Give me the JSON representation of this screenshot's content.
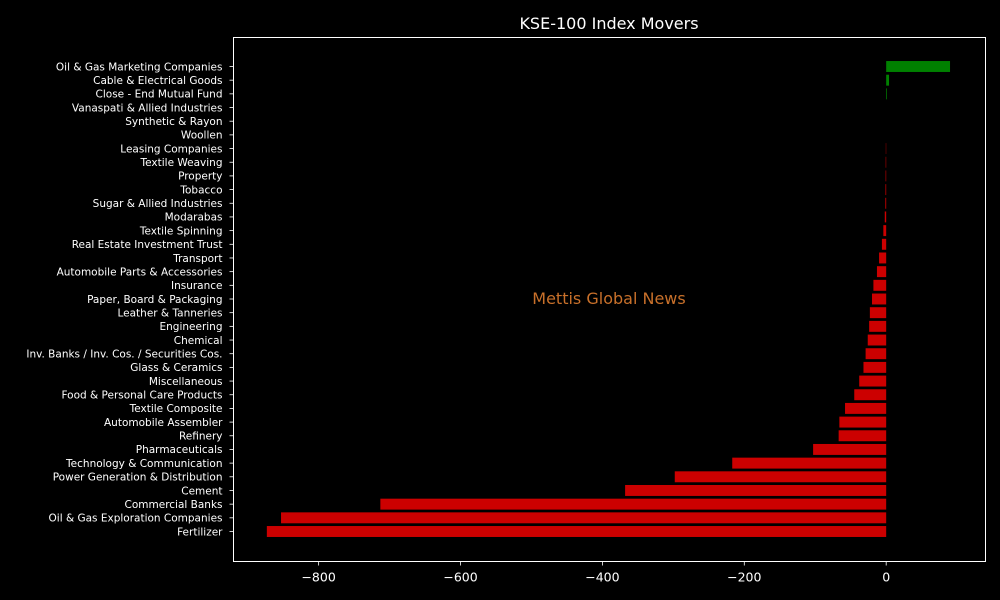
{
  "chart_data": {
    "type": "bar",
    "orientation": "horizontal",
    "title": "KSE-100 Index Movers",
    "watermark": "Mettis Global News",
    "xlim": [
      -920,
      140
    ],
    "xticks": [
      -800,
      -600,
      -400,
      -200,
      0
    ],
    "xtick_labels": [
      "−800",
      "−600",
      "−400",
      "−200",
      "0"
    ],
    "colors": {
      "positive": "#008000",
      "negative": "#cc0000",
      "background": "#000000",
      "axis": "#ffffff"
    },
    "categories": [
      "Oil & Gas Marketing Companies",
      "Cable & Electrical Goods",
      "Close - End Mutual Fund",
      "Vanaspati & Allied Industries",
      "Synthetic & Rayon",
      "Woollen",
      "Leasing Companies",
      "Textile Weaving",
      "Property",
      "Tobacco",
      "Sugar & Allied Industries",
      "Modarabas",
      "Textile Spinning",
      "Real Estate Investment Trust",
      "Transport",
      "Automobile Parts & Accessories",
      "Insurance",
      "Paper, Board & Packaging",
      "Leather & Tanneries",
      "Engineering",
      "Chemical",
      "Inv. Banks / Inv. Cos. / Securities Cos.",
      "Glass & Ceramics",
      "Miscellaneous",
      "Food & Personal Care Products",
      "Textile Composite",
      "Automobile Assembler",
      "Refinery",
      "Pharmaceuticals",
      "Technology & Communication",
      "Power Generation & Distribution",
      "Cement",
      "Commercial Banks",
      "Oil & Gas Exploration Companies",
      "Fertilizer"
    ],
    "values": [
      90,
      4,
      1,
      0,
      0,
      0,
      -0.5,
      -0.7,
      -0.8,
      -1,
      -1.2,
      -2,
      -4,
      -6,
      -10,
      -13,
      -18,
      -20,
      -23,
      -24,
      -26,
      -29,
      -32,
      -38,
      -45,
      -58,
      -66,
      -67,
      -103,
      -217,
      -298,
      -368,
      -713,
      -853,
      -873
    ]
  }
}
